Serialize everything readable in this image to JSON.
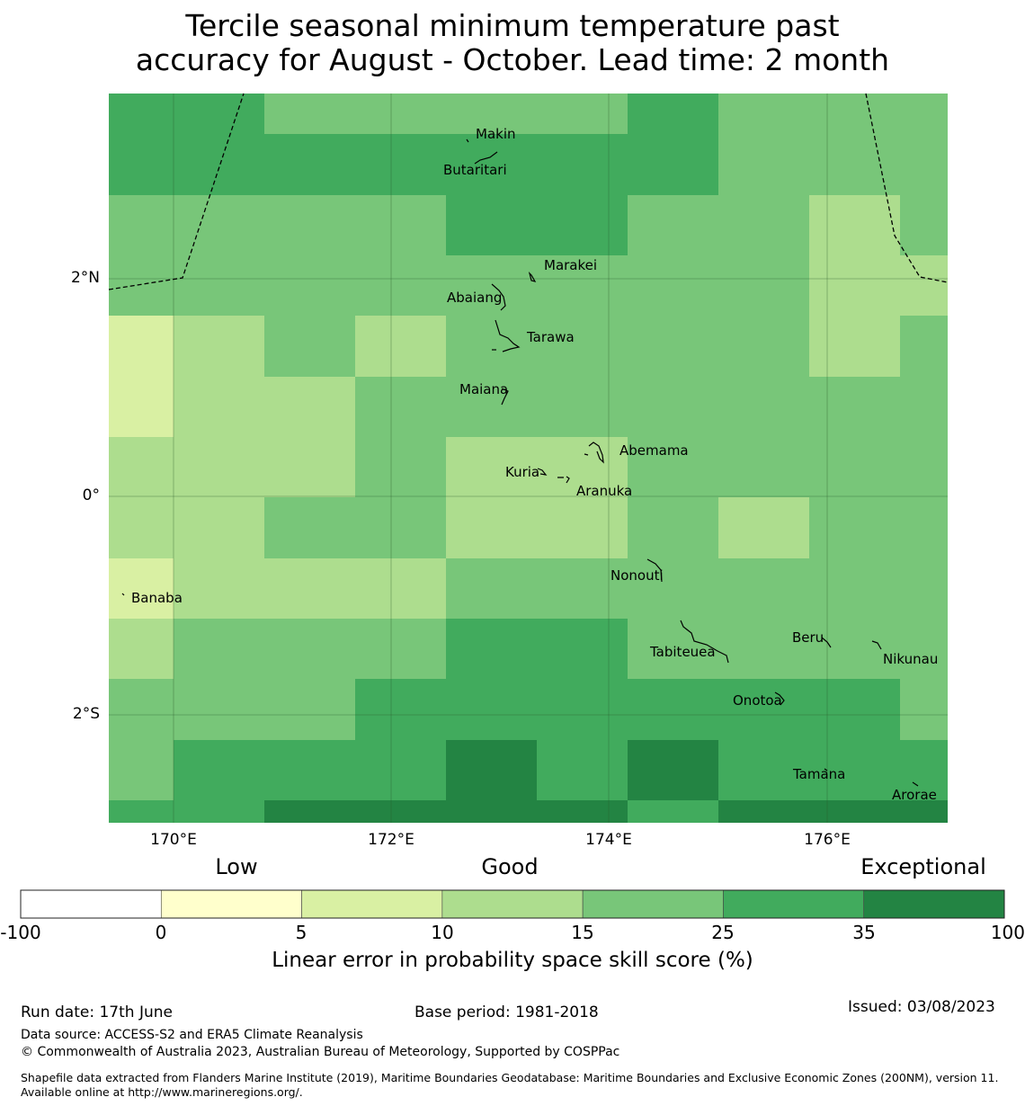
{
  "title": {
    "line1": "Tercile seasonal minimum temperature past",
    "line2": "accuracy for August - October. Lead time: 2 month"
  },
  "map": {
    "lat_labels": [
      "2°N",
      "0°",
      "2°S"
    ],
    "lon_labels": [
      "170°E",
      "172°E",
      "174°E",
      "176°E"
    ],
    "islands": [
      {
        "name": "Makin"
      },
      {
        "name": "Butaritari"
      },
      {
        "name": "Marakei"
      },
      {
        "name": "Abaiang"
      },
      {
        "name": "Tarawa"
      },
      {
        "name": "Maiana"
      },
      {
        "name": "Abemama"
      },
      {
        "name": "Kuria"
      },
      {
        "name": "Aranuka"
      },
      {
        "name": "Nonouti"
      },
      {
        "name": "Banaba"
      },
      {
        "name": "Beru"
      },
      {
        "name": "Tabiteuea"
      },
      {
        "name": "Nikunau"
      },
      {
        "name": "Onotoa"
      },
      {
        "name": "Tamana"
      },
      {
        "name": "Arorae"
      }
    ],
    "cell_colors": [
      "#ffffcc",
      "#d9f0a3",
      "#addd8e",
      "#78c679",
      "#41ab5d",
      "#238443"
    ],
    "grid_category_rows": [
      [
        4,
        4,
        3,
        3,
        3,
        3,
        4,
        3,
        3,
        3
      ],
      [
        4,
        4,
        4,
        4,
        4,
        4,
        4,
        3,
        3,
        3
      ],
      [
        3,
        3,
        3,
        3,
        4,
        4,
        3,
        3,
        2,
        3
      ],
      [
        3,
        3,
        3,
        3,
        3,
        3,
        3,
        3,
        2,
        2
      ],
      [
        1,
        2,
        3,
        2,
        3,
        3,
        3,
        3,
        2,
        3
      ],
      [
        1,
        2,
        2,
        3,
        3,
        3,
        3,
        3,
        3,
        3
      ],
      [
        2,
        2,
        2,
        3,
        2,
        2,
        3,
        3,
        3,
        3
      ],
      [
        2,
        2,
        3,
        3,
        2,
        2,
        3,
        2,
        3,
        3
      ],
      [
        1,
        2,
        2,
        2,
        3,
        3,
        3,
        3,
        3,
        3
      ],
      [
        2,
        3,
        3,
        3,
        4,
        4,
        3,
        3,
        3,
        3
      ],
      [
        3,
        3,
        3,
        4,
        4,
        4,
        4,
        4,
        4,
        3
      ],
      [
        3,
        4,
        4,
        4,
        5,
        4,
        5,
        4,
        4,
        4
      ],
      [
        4,
        4,
        5,
        5,
        5,
        5,
        4,
        5,
        5,
        5
      ]
    ]
  },
  "legend": {
    "category_labels": [
      "Low",
      "Good",
      "Exceptional"
    ],
    "bins": [
      {
        "color": "#ffffff"
      },
      {
        "color": "#ffffcc"
      },
      {
        "color": "#d9f0a3"
      },
      {
        "color": "#addd8e"
      },
      {
        "color": "#78c679"
      },
      {
        "color": "#41ab5d"
      },
      {
        "color": "#238443"
      }
    ],
    "tick_labels": [
      "-100",
      "0",
      "5",
      "10",
      "15",
      "25",
      "35",
      "100"
    ],
    "title": "Linear error in probability space skill score (%)"
  },
  "footer": {
    "run_date": "Run date: 17th June",
    "base_period": "Base period: 1981-2018",
    "issued": "Issued: 03/08/2023",
    "data_source": "Data source: ACCESS-S2 and ERA5 Climate Reanalysis",
    "copyright": "© Commonwealth of Australia 2023, Australian Bureau of Meteorology, Supported by COSPPac",
    "shapefile": "Shapefile data extracted from Flanders Marine Institute (2019), Maritime Boundaries Geodatabase: Maritime Boundaries and Exclusive Economic Zones (200NM), version 11. Available online at http://www.marineregions.org/."
  }
}
